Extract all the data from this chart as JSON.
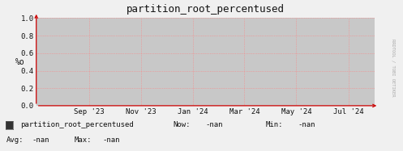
{
  "title": "partition_root_percentused",
  "ylabel": "%o",
  "yticks": [
    0.0,
    0.2,
    0.4,
    0.6,
    0.8,
    1.0
  ],
  "xtick_labels": [
    "Sep '23",
    "Nov '23",
    "Jan '24",
    "Mar '24",
    "May '24",
    "Jul '24"
  ],
  "xtick_positions": [
    1693526400,
    1698796800,
    1704067200,
    1709251200,
    1714521600,
    1719792000
  ],
  "x_min": 1688169600,
  "x_max": 1722470400,
  "y_min": 0.0,
  "y_max": 1.0,
  "fig_bg_color": "#f0f0f0",
  "plot_bg_color": "#c8c8c8",
  "outer_bg_color": "#f0f0f0",
  "grid_color": "#ff8080",
  "axis_color": "#cc0000",
  "title_color": "#111111",
  "text_color": "#111111",
  "legend_box_color": "#333333",
  "watermark": "RRDTOOL / TOBI OETIKER",
  "watermark_color": "#aaaaaa",
  "font_family": "DejaVu Sans Mono",
  "legend_label": "partition_root_percentused",
  "now_val": "-nan",
  "min_val": "-nan",
  "avg_val": "-nan",
  "max_val": "-nan"
}
